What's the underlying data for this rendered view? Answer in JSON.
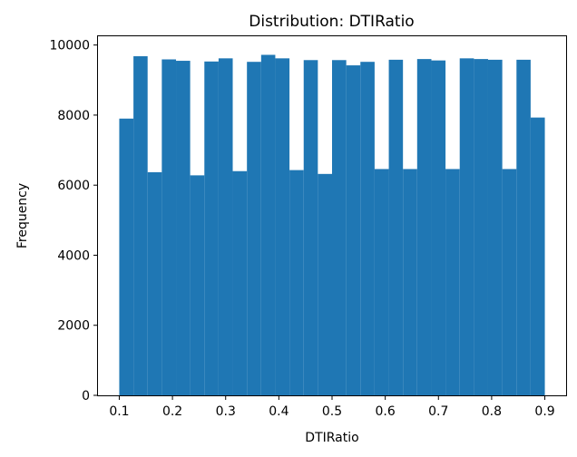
{
  "chart_data": {
    "type": "bar",
    "title": "Distribution: DTIRatio",
    "xlabel": "DTIRatio",
    "ylabel": "Frequency",
    "bar_color": "#1f77b4",
    "xlim": [
      0.06,
      0.94
    ],
    "ylim": [
      0,
      10250
    ],
    "xticks": [
      0.1,
      0.2,
      0.3,
      0.4,
      0.5,
      0.6,
      0.7,
      0.8,
      0.9
    ],
    "xtick_labels": [
      "0.1",
      "0.2",
      "0.3",
      "0.4",
      "0.5",
      "0.6",
      "0.7",
      "0.8",
      "0.9"
    ],
    "yticks": [
      0,
      2000,
      4000,
      6000,
      8000,
      10000
    ],
    "ytick_labels": [
      "0",
      "2000",
      "4000",
      "6000",
      "8000",
      "10000"
    ],
    "bin_edges": [
      0.1,
      0.1267,
      0.1533,
      0.18,
      0.2067,
      0.2333,
      0.26,
      0.2867,
      0.3133,
      0.34,
      0.3667,
      0.3933,
      0.42,
      0.4467,
      0.4733,
      0.5,
      0.5267,
      0.5533,
      0.58,
      0.6067,
      0.6333,
      0.66,
      0.6867,
      0.7133,
      0.74,
      0.7667,
      0.7933,
      0.82,
      0.8467,
      0.8733,
      0.9
    ],
    "values": [
      7900,
      9680,
      6370,
      9590,
      9550,
      6280,
      9530,
      9620,
      6400,
      9520,
      9720,
      9620,
      6430,
      9570,
      6320,
      9570,
      9420,
      9520,
      6460,
      9580,
      6460,
      9600,
      9560,
      6460,
      9620,
      9600,
      9580,
      6460,
      9580,
      7930
    ]
  }
}
